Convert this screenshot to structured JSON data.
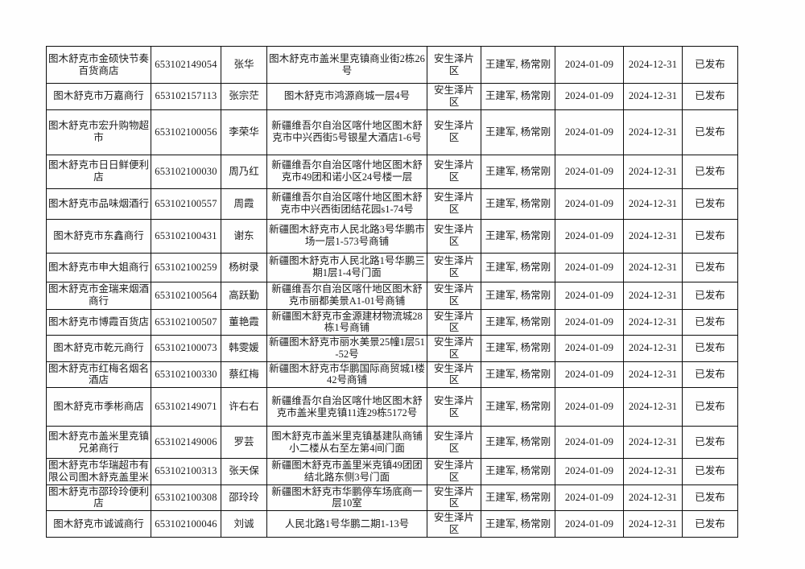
{
  "page": {
    "background_color": "#ffffff",
    "border_color": "#0d0d0d",
    "text_color": "#1c1c1c"
  },
  "table": {
    "rows": [
      {
        "name": "图木舒克市金硕快节奏百货商店",
        "code": "653102149054",
        "person": "张华",
        "address": "图木舒克市盖米里克镇商业街2栋26号",
        "area": "安生泽片区",
        "staff": "王建军, 杨常刚",
        "date_start": "2024-01-09",
        "date_end": "2024-12-31",
        "status": "已发布"
      },
      {
        "name": "图木舒克市万嘉商行",
        "code": "653102157113",
        "person": "张宗茫",
        "address": "图木舒克市鸿源商城一层4号",
        "area": "安生泽片区",
        "staff": "王建军, 杨常刚",
        "date_start": "2024-01-09",
        "date_end": "2024-12-31",
        "status": "已发布"
      },
      {
        "name": "图木舒克市宏升购物超市",
        "code": "653102100056",
        "person": "李荣华",
        "address": "新疆维吾尔自治区喀什地区图木舒克市中兴西街5号银星大酒店1-6号",
        "area": "安生泽片区",
        "staff": "王建军, 杨常刚",
        "date_start": "2024-01-09",
        "date_end": "2024-12-31",
        "status": "已发布"
      },
      {
        "name": "图木舒克市日日鲜便利店",
        "code": "653102100030",
        "person": "周乃红",
        "address": "新疆维吾尔自治区喀什地区图木舒克市49团和诺小区24号楼一层",
        "area": "安生泽片区",
        "staff": "王建军, 杨常刚",
        "date_start": "2024-01-09",
        "date_end": "2024-12-31",
        "status": "已发布"
      },
      {
        "name": "图木舒克市品味烟酒行",
        "code": "653102100557",
        "person": "周霞",
        "address": "新疆维吾尔自治区喀什地区图木舒克市中兴西街团结花园s1-74号",
        "area": "安生泽片区",
        "staff": "王建军, 杨常刚",
        "date_start": "2024-01-09",
        "date_end": "2024-12-31",
        "status": "已发布"
      },
      {
        "name": "图木舒克市东鑫商行",
        "code": "653102100431",
        "person": "谢东",
        "address": "新疆图木舒克市人民北路3号华鹏市场一层1-573号商铺",
        "area": "安生泽片区",
        "staff": "王建军, 杨常刚",
        "date_start": "2024-01-09",
        "date_end": "2024-12-31",
        "status": "已发布"
      },
      {
        "name": "图木舒克市申大姐商行",
        "code": "653102100259",
        "person": "杨树录",
        "address": "新疆图木舒克市人民北路1号华鹏三期1层1-4号门面",
        "area": "安生泽片区",
        "staff": "王建军, 杨常刚",
        "date_start": "2024-01-09",
        "date_end": "2024-12-31",
        "status": "已发布"
      },
      {
        "name": "图木舒克市金瑞来烟酒商行",
        "code": "653102100564",
        "person": "高跃勤",
        "address": "新疆维吾尔自治区喀什地区图木舒克市丽都美景A1-01号商铺",
        "area": "安生泽片区",
        "staff": "王建军, 杨常刚",
        "date_start": "2024-01-09",
        "date_end": "2024-12-31",
        "status": "已发布"
      },
      {
        "name": "图木舒克市博霞百货店",
        "code": "653102100507",
        "person": "董艳霞",
        "address": "新疆图木舒克市金源建材物流城28栋1号商铺",
        "area": "安生泽片区",
        "staff": "王建军, 杨常刚",
        "date_start": "2024-01-09",
        "date_end": "2024-12-31",
        "status": "已发布"
      },
      {
        "name": "图木舒克市乾元商行",
        "code": "653102100073",
        "person": "韩雯媛",
        "address": "新疆图木舒克市丽水美景25幢1层51-52号",
        "area": "安生泽片区",
        "staff": "王建军, 杨常刚",
        "date_start": "2024-01-09",
        "date_end": "2024-12-31",
        "status": "已发布"
      },
      {
        "name": "图木舒克市红梅名烟名酒店",
        "code": "653102100330",
        "person": "蔡红梅",
        "address": "新疆图木舒克市华鹏国际商贸城1楼42号商铺",
        "area": "安生泽片区",
        "staff": "王建军, 杨常刚",
        "date_start": "2024-01-09",
        "date_end": "2024-12-31",
        "status": "已发布"
      },
      {
        "name": "图木舒克市季彬商店",
        "code": "653102149071",
        "person": "许右右",
        "address": "新疆维吾尔自治区喀什地区图木舒克市盖米里克镇11连29栋5172号",
        "area": "安生泽片区",
        "staff": "王建军, 杨常刚",
        "date_start": "2024-01-09",
        "date_end": "2024-12-31",
        "status": "已发布"
      },
      {
        "name": "图木舒克市盖米里克镇兄弟商行",
        "code": "653102149006",
        "person": "罗芸",
        "address": "图木舒克市盖米里克镇基建队商铺小二楼从右至左第4间门面",
        "area": "安生泽片区",
        "staff": "王建军, 杨常刚",
        "date_start": "2024-01-09",
        "date_end": "2024-12-31",
        "status": "已发布"
      },
      {
        "name": "图木舒克市华瑞超市有限公司图木舒克盖里米",
        "code": "653102100313",
        "person": "张天保",
        "address": "新疆图木舒克市盖里米克镇49团团结北路东侧3号门面",
        "area": "安生泽片区",
        "staff": "王建军, 杨常刚",
        "date_start": "2024-01-09",
        "date_end": "2024-12-31",
        "status": "已发布"
      },
      {
        "name": "图木舒克市邵玲玲便利店",
        "code": "653102100308",
        "person": "邵玲玲",
        "address": "新疆图木舒克市华鹏停车场底商一层10室",
        "area": "安生泽片区",
        "staff": "王建军, 杨常刚",
        "date_start": "2024-01-09",
        "date_end": "2024-12-31",
        "status": "已发布"
      },
      {
        "name": "图木舒克市诚诚商行",
        "code": "653102100046",
        "person": "刘诚",
        "address": "人民北路1号华鹏二期1-13号",
        "area": "安生泽片区",
        "staff": "王建军, 杨常刚",
        "date_start": "2024-01-09",
        "date_end": "2024-12-31",
        "status": "已发布"
      }
    ]
  }
}
